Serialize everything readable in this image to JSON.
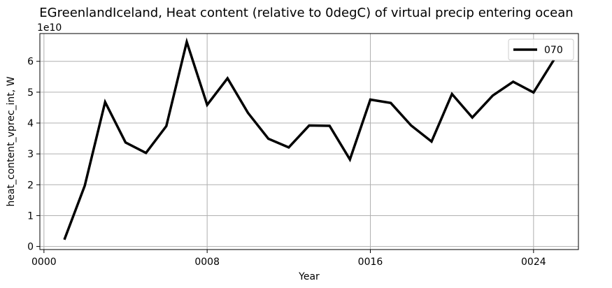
{
  "chart_data": {
    "type": "line",
    "title": "EGreenlandIceland, Heat content (relative to 0degC) of virtual precip entering ocean",
    "xlabel": "Year",
    "ylabel": "heat_content_vprec_int, W",
    "y_offset_label": "1e10",
    "xlim": [
      -0.2,
      26.2
    ],
    "ylim": [
      -0.1,
      6.9
    ],
    "x_ticks": [
      {
        "value": 0,
        "label": "0000"
      },
      {
        "value": 8,
        "label": "0008"
      },
      {
        "value": 16,
        "label": "0016"
      },
      {
        "value": 24,
        "label": "0024"
      }
    ],
    "y_ticks": [
      {
        "value": 0,
        "label": "0"
      },
      {
        "value": 1,
        "label": "1"
      },
      {
        "value": 2,
        "label": "2"
      },
      {
        "value": 3,
        "label": "3"
      },
      {
        "value": 4,
        "label": "4"
      },
      {
        "value": 5,
        "label": "5"
      },
      {
        "value": 6,
        "label": "6"
      }
    ],
    "grid": true,
    "legend_position": "top-right",
    "series": [
      {
        "name": "070",
        "color": "#000000",
        "x": [
          1,
          2,
          3,
          4,
          5,
          6,
          7,
          8,
          9,
          10,
          11,
          12,
          13,
          14,
          15,
          16,
          17,
          18,
          19,
          20,
          21,
          22,
          23,
          24,
          25
        ],
        "values": [
          0.22,
          1.97,
          4.68,
          3.37,
          3.03,
          3.9,
          6.63,
          4.59,
          5.45,
          4.33,
          3.49,
          3.21,
          3.92,
          3.91,
          2.82,
          4.76,
          4.65,
          3.92,
          3.4,
          4.94,
          4.18,
          4.89,
          5.34,
          4.99,
          6.05
        ]
      }
    ]
  }
}
